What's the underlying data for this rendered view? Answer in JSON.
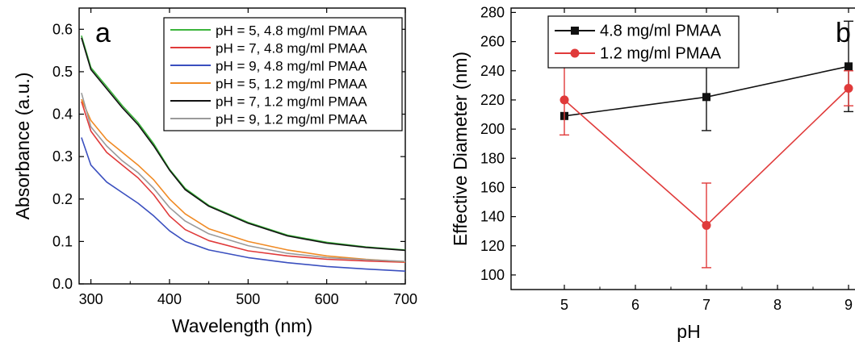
{
  "chart_data": [
    {
      "panel_label": "a",
      "type": "line",
      "xlabel": "Wavelength (nm)",
      "ylabel": "Absorbance (a.u.)",
      "xlim": [
        285,
        700
      ],
      "ylim": [
        0.0,
        0.65
      ],
      "xticks": [
        300,
        400,
        500,
        600,
        700
      ],
      "yticks": [
        0.0,
        0.1,
        0.2,
        0.3,
        0.4,
        0.5,
        0.6
      ],
      "grid": false,
      "legend_position": "top-right",
      "series": [
        {
          "name": "pH = 5, 4.8 mg/ml PMAA",
          "color": "#3cb53c",
          "x": [
            288,
            300,
            320,
            340,
            360,
            380,
            400,
            420,
            450,
            500,
            550,
            600,
            650,
            700
          ],
          "y": [
            0.585,
            0.51,
            0.465,
            0.42,
            0.38,
            0.33,
            0.27,
            0.225,
            0.185,
            0.145,
            0.115,
            0.098,
            0.087,
            0.08
          ]
        },
        {
          "name": "pH = 7, 4.8 mg/ml PMAA",
          "color": "#e03a3a",
          "x": [
            288,
            300,
            320,
            340,
            360,
            380,
            400,
            420,
            450,
            500,
            550,
            600,
            650,
            700
          ],
          "y": [
            0.43,
            0.36,
            0.31,
            0.28,
            0.25,
            0.21,
            0.16,
            0.128,
            0.102,
            0.078,
            0.066,
            0.058,
            0.054,
            0.051
          ]
        },
        {
          "name": "pH = 9, 4.8 mg/ml PMAA",
          "color": "#3a4fbf",
          "x": [
            288,
            300,
            320,
            340,
            360,
            380,
            400,
            420,
            450,
            500,
            550,
            600,
            650,
            700
          ],
          "y": [
            0.345,
            0.28,
            0.24,
            0.215,
            0.19,
            0.16,
            0.125,
            0.1,
            0.08,
            0.062,
            0.05,
            0.041,
            0.035,
            0.03
          ]
        },
        {
          "name": "pH = 5, 1.2 mg/ml PMAA",
          "color": "#f08a24",
          "x": [
            288,
            300,
            320,
            340,
            360,
            380,
            400,
            420,
            450,
            500,
            550,
            600,
            650,
            700
          ],
          "y": [
            0.435,
            0.385,
            0.34,
            0.31,
            0.28,
            0.245,
            0.2,
            0.165,
            0.13,
            0.1,
            0.08,
            0.066,
            0.058,
            0.052
          ]
        },
        {
          "name": "pH = 7, 1.2 mg/ml PMAA",
          "color": "#111111",
          "x": [
            288,
            300,
            320,
            340,
            360,
            380,
            400,
            420,
            450,
            500,
            550,
            600,
            650,
            700
          ],
          "y": [
            0.58,
            0.505,
            0.46,
            0.415,
            0.375,
            0.325,
            0.268,
            0.222,
            0.183,
            0.143,
            0.113,
            0.096,
            0.086,
            0.079
          ]
        },
        {
          "name": "pH = 9, 1.2 mg/ml PMAA",
          "color": "#9a9a9a",
          "x": [
            288,
            300,
            320,
            340,
            360,
            380,
            400,
            420,
            450,
            500,
            550,
            600,
            650,
            700
          ],
          "y": [
            0.45,
            0.37,
            0.325,
            0.29,
            0.262,
            0.225,
            0.18,
            0.148,
            0.118,
            0.09,
            0.072,
            0.062,
            0.057,
            0.053
          ]
        }
      ]
    },
    {
      "panel_label": "b",
      "type": "line",
      "xlabel": "pH",
      "ylabel": "Effective Diameter (nm)",
      "xlim": [
        4.25,
        9.25
      ],
      "ylim": [
        90,
        283
      ],
      "xticks": [
        5,
        6,
        7,
        8,
        9
      ],
      "yticks": [
        100,
        120,
        140,
        160,
        180,
        200,
        220,
        240,
        260,
        280
      ],
      "grid": false,
      "legend_position": "top-left",
      "series": [
        {
          "name": "4.8 mg/ml PMAA",
          "color": "#111111",
          "marker": "square",
          "x": [
            5,
            7,
            9
          ],
          "y": [
            209,
            222,
            243
          ],
          "error": [
            null,
            23,
            31
          ]
        },
        {
          "name": "1.2 mg/ml PMAA",
          "color": "#e03a3a",
          "marker": "circle",
          "x": [
            5,
            7,
            9
          ],
          "y": [
            220,
            134,
            228
          ],
          "error": [
            24,
            29,
            12
          ]
        }
      ]
    }
  ]
}
